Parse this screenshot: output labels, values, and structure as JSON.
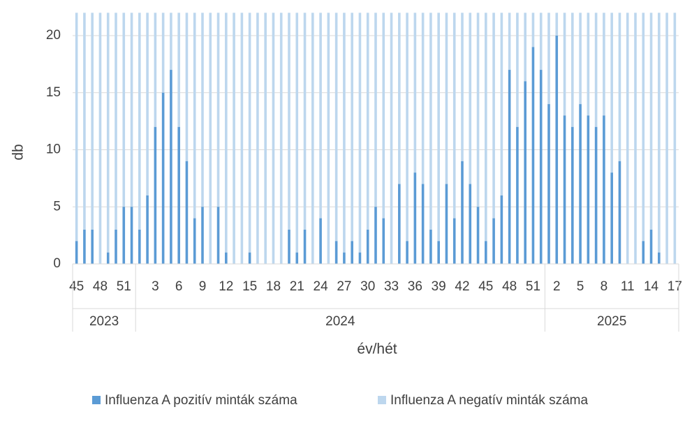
{
  "chart_data": {
    "type": "bar",
    "stacked": true,
    "xlabel": "év/hét",
    "ylabel": "db",
    "ylim": [
      0,
      22
    ],
    "yticks": [
      0,
      5,
      10,
      15,
      20
    ],
    "ytick_labels": [
      "0",
      "5",
      "10",
      "15",
      "20"
    ],
    "legend_position": "bottom",
    "years": [
      {
        "label": "2023",
        "weeks": [
          45,
          46,
          47,
          48,
          49,
          50,
          51,
          52
        ]
      },
      {
        "label": "2024",
        "weeks": [
          1,
          2,
          3,
          4,
          5,
          6,
          7,
          8,
          9,
          10,
          11,
          12,
          13,
          14,
          15,
          16,
          17,
          18,
          19,
          20,
          21,
          22,
          23,
          24,
          25,
          26,
          27,
          28,
          29,
          30,
          31,
          32,
          33,
          34,
          35,
          36,
          37,
          38,
          39,
          40,
          41,
          42,
          43,
          44,
          45,
          46,
          47,
          48,
          49,
          50,
          51,
          52
        ]
      },
      {
        "label": "2025",
        "weeks": [
          1,
          2,
          3,
          4,
          5,
          6,
          7,
          8,
          9,
          10,
          11,
          12,
          13,
          14,
          15,
          16,
          17
        ]
      }
    ],
    "visible_week_labels": [
      {
        "index": 0,
        "label": "45"
      },
      {
        "index": 3,
        "label": "48"
      },
      {
        "index": 6,
        "label": "51"
      },
      {
        "index": 10,
        "label": "3"
      },
      {
        "index": 13,
        "label": "6"
      },
      {
        "index": 16,
        "label": "9"
      },
      {
        "index": 19,
        "label": "12"
      },
      {
        "index": 22,
        "label": "15"
      },
      {
        "index": 25,
        "label": "18"
      },
      {
        "index": 28,
        "label": "21"
      },
      {
        "index": 31,
        "label": "24"
      },
      {
        "index": 34,
        "label": "27"
      },
      {
        "index": 37,
        "label": "30"
      },
      {
        "index": 40,
        "label": "33"
      },
      {
        "index": 43,
        "label": "36"
      },
      {
        "index": 46,
        "label": "39"
      },
      {
        "index": 49,
        "label": "42"
      },
      {
        "index": 52,
        "label": "45"
      },
      {
        "index": 55,
        "label": "48"
      },
      {
        "index": 58,
        "label": "51"
      },
      {
        "index": 61,
        "label": "2"
      },
      {
        "index": 64,
        "label": "5"
      },
      {
        "index": 67,
        "label": "8"
      },
      {
        "index": 70,
        "label": "11"
      },
      {
        "index": 73,
        "label": "14"
      },
      {
        "index": 76,
        "label": "17"
      }
    ],
    "series": [
      {
        "name": "Influenza A pozitív minták száma",
        "color": "#5b9bd5",
        "values": [
          2,
          3,
          3,
          0,
          1,
          3,
          5,
          5,
          3,
          6,
          12,
          15,
          17,
          12,
          9,
          4,
          5,
          0,
          5,
          1,
          0,
          0,
          1,
          0,
          0,
          0,
          0,
          3,
          1,
          3,
          0,
          4,
          0,
          2,
          1,
          2,
          1,
          3,
          5,
          4,
          0,
          7,
          2,
          8,
          7,
          3,
          2,
          7,
          4,
          9,
          7,
          5,
          2,
          4,
          6,
          17,
          12,
          16,
          19,
          17,
          14,
          20,
          13,
          12,
          14,
          13,
          12,
          13,
          8,
          9,
          0,
          0,
          2,
          3,
          1,
          0,
          0
        ]
      },
      {
        "name": "Influenza A negatív minták száma",
        "color": "#bdd7ee",
        "values": [
          20,
          19,
          19,
          22,
          21,
          19,
          17,
          17,
          19,
          16,
          10,
          7,
          5,
          10,
          13,
          18,
          17,
          22,
          17,
          21,
          22,
          22,
          21,
          22,
          22,
          22,
          22,
          19,
          21,
          19,
          22,
          18,
          22,
          20,
          21,
          20,
          21,
          19,
          17,
          18,
          22,
          15,
          20,
          14,
          15,
          19,
          20,
          15,
          18,
          13,
          15,
          17,
          20,
          18,
          16,
          5,
          10,
          6,
          3,
          5,
          8,
          2,
          9,
          10,
          8,
          9,
          10,
          9,
          14,
          13,
          22,
          22,
          20,
          19,
          21,
          22,
          22
        ]
      }
    ]
  }
}
